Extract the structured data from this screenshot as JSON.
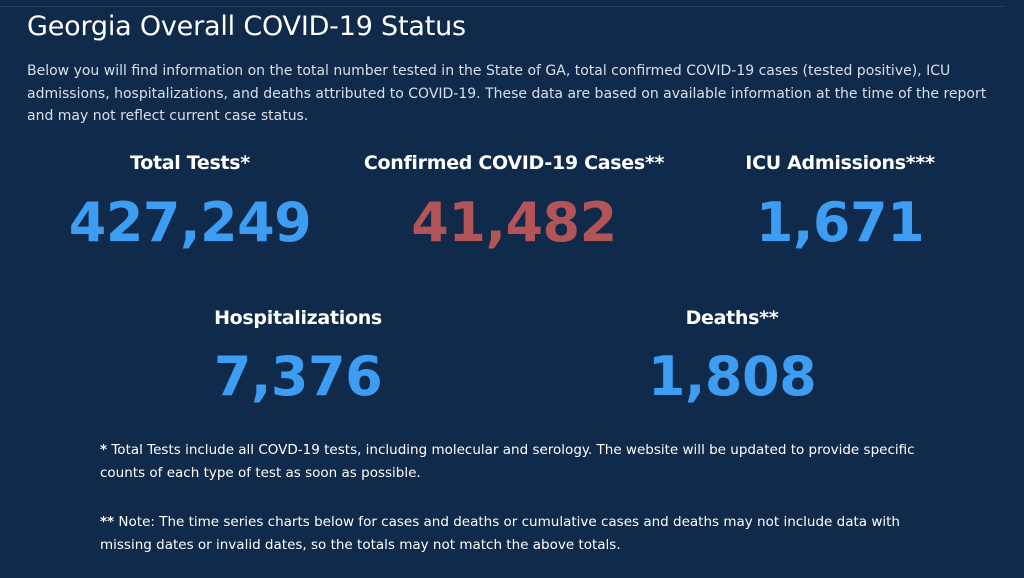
{
  "header": {
    "title": "Georgia Overall COVID-19 Status",
    "intro": "Below you will find information on the total number tested in the State of GA, total confirmed COVID-19 cases (tested positive), ICU admissions, hospitalizations, and deaths attributed to COVID-19. These data are based on available information at the time of the report and may not reflect current case status."
  },
  "stats": {
    "total_tests": {
      "label": "Total Tests*",
      "value": "427,249"
    },
    "confirmed_cases": {
      "label": "Confirmed COVID-19 Cases**",
      "value": "41,482"
    },
    "icu_admissions": {
      "label": "ICU Admissions***",
      "value": "1,671"
    },
    "hospitalizations": {
      "label": "Hospitalizations",
      "value": "7,376"
    },
    "deaths": {
      "label": "Deaths**",
      "value": "1,808"
    }
  },
  "notes": {
    "tests_mark": "*",
    "tests_text": " Total Tests include all COVD-19 tests, including molecular and serology. The website will be updated to provide specific counts of each type of test as soon as possible.",
    "series_mark": "**",
    "series_text": " Note: The time series charts below for cases and deaths or cumulative cases and deaths may not include data with missing dates or invalid dates, so the totals may not match the above totals."
  },
  "colors": {
    "background": "#0f2a4a",
    "value_blue": "#3d9df2",
    "value_red": "#b35558"
  }
}
